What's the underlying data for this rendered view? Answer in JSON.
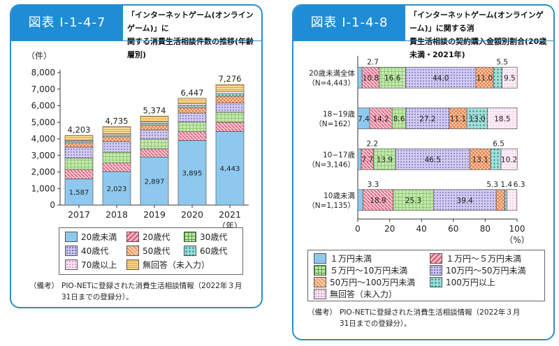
{
  "left": {
    "fig_id": "図表 I-1-4-7",
    "title_lines": [
      "「インターネットゲーム(オンラインゲーム)」に",
      "関する消費生活相談件数の推移(年齢層別)"
    ],
    "legend": [
      {
        "label": "20歳未満"
      },
      {
        "label": "20歳代"
      },
      {
        "label": "30歳代"
      },
      {
        "label": "40歳代"
      },
      {
        "label": "50歳代"
      },
      {
        "label": "60歳代"
      },
      {
        "label": "70歳以上"
      },
      {
        "label": "無回答（未入力）"
      }
    ],
    "note_key": "（備考）",
    "note_lines": [
      "PIO-NETに登録された消費生活相談情報（2022年３月",
      "31日までの登録分）。"
    ]
  },
  "right": {
    "fig_id": "図表 I-1-4-8",
    "title_lines": [
      "「インターネットゲーム(オンラインゲーム)」に関する消",
      "費生活相談の契約購入金額別割合(20歳未満・2021年)"
    ],
    "legend": [
      {
        "label": "１万円未満"
      },
      {
        "label": "１万円～５万円未満"
      },
      {
        "label": "５万円～10万円未満"
      },
      {
        "label": "10万円～50万円未満"
      },
      {
        "label": "50万円～100万円未満"
      },
      {
        "label": "100万円以上"
      },
      {
        "label": "無回答（未入力）"
      }
    ],
    "note_key": "（備考）",
    "note_lines": [
      "PIO-NETに登録された消費生活相談情報（2022年３月",
      "31日までの登録分）。"
    ]
  },
  "chart_data": [
    {
      "type": "bar",
      "stacked": true,
      "ylabel": "（件）",
      "xlabel": "（年）",
      "ylim": [
        0,
        8000
      ],
      "yticks": [
        "0",
        "1,000",
        "2,000",
        "3,000",
        "4,000",
        "5,000",
        "6,000",
        "7,000",
        "8,000"
      ],
      "categories": [
        "2017",
        "2018",
        "2019",
        "2020",
        "2021"
      ],
      "totals": [
        "4,203",
        "4,735",
        "5,374",
        "6,447",
        "7,276"
      ],
      "base_labels": [
        "1,587",
        "2,023",
        "2,897",
        "3,895",
        "4,443"
      ],
      "series": [
        {
          "name": "20歳未満",
          "values": [
            1587,
            2023,
            2897,
            3895,
            4443
          ]
        },
        {
          "name": "20歳代",
          "values": [
            560,
            520,
            500,
            540,
            560
          ]
        },
        {
          "name": "30歳代",
          "values": [
            700,
            650,
            580,
            580,
            600
          ]
        },
        {
          "name": "40歳代",
          "values": [
            650,
            640,
            560,
            540,
            560
          ]
        },
        {
          "name": "50歳代",
          "values": [
            260,
            300,
            300,
            330,
            400
          ]
        },
        {
          "name": "60歳代",
          "values": [
            90,
            110,
            110,
            130,
            170
          ]
        },
        {
          "name": "70歳以上",
          "values": [
            60,
            80,
            90,
            110,
            130
          ]
        },
        {
          "name": "無回答（未入力）",
          "values": [
            296,
            412,
            337,
            322,
            413
          ]
        }
      ],
      "colors": [
        "#8ec8ee",
        "#f2a7b6",
        "#bfe6a6",
        "#cfc8ef",
        "#f7c8a8",
        "#9fdad4",
        "#fbe7f4",
        "#f7d58a"
      ],
      "grid": false
    },
    {
      "type": "bar",
      "orientation": "horizontal",
      "stacked": true,
      "percent": true,
      "xlabel": "（%）",
      "xlim": [
        0,
        100
      ],
      "xticks": [
        "0",
        "20",
        "40",
        "60",
        "80",
        "100"
      ],
      "categories": [
        {
          "line1": "20歳未満全体",
          "line2": "（N=4,443）"
        },
        {
          "line1": "18~19歳",
          "line2": "（N=162）"
        },
        {
          "line1": "10~17歳",
          "line2": "（N=3,146）"
        },
        {
          "line1": "10歳未満",
          "line2": "（N=1,135）"
        }
      ],
      "rows": [
        {
          "values": [
            2.7,
            10.8,
            16.6,
            44.0,
            11.0,
            5.5,
            9.5
          ],
          "labels": [
            "",
            "10.8",
            "16.6",
            "44.0",
            "11.0",
            "",
            "9.5"
          ],
          "callouts": [
            "2.7",
            "5.5"
          ]
        },
        {
          "values": [
            7.4,
            14.2,
            8.6,
            27.2,
            11.1,
            13.0,
            18.5
          ],
          "labels": [
            "7.4",
            "14.2",
            "8.6",
            "27.2",
            "11.1",
            "13.0",
            "18.5"
          ],
          "callouts": []
        },
        {
          "values": [
            2.2,
            7.7,
            13.9,
            46.5,
            13.1,
            6.5,
            10.2
          ],
          "labels": [
            "",
            "7.7",
            "13.9",
            "46.5",
            "13.1",
            "",
            "10.2"
          ],
          "callouts": [
            "2.2",
            "6.5"
          ]
        },
        {
          "values": [
            3.3,
            18.9,
            25.3,
            39.4,
            5.3,
            1.4,
            6.3
          ],
          "labels": [
            "",
            "18.9",
            "25.3",
            "39.4",
            "",
            "",
            ""
          ],
          "callouts": [
            "3.3",
            "5.3 1.4",
            "6.3"
          ]
        }
      ],
      "series": [
        "１万円未満",
        "１万円～５万円未満",
        "５万円～10万円未満",
        "10万円～50万円未満",
        "50万円～100万円未満",
        "100万円以上",
        "無回答（未入力）"
      ],
      "colors": [
        "#8ec8ee",
        "#f2a7b6",
        "#bfe6a6",
        "#cfc8ef",
        "#f7c8a8",
        "#9fdad4",
        "#fbe7f4"
      ],
      "grid": false
    }
  ]
}
